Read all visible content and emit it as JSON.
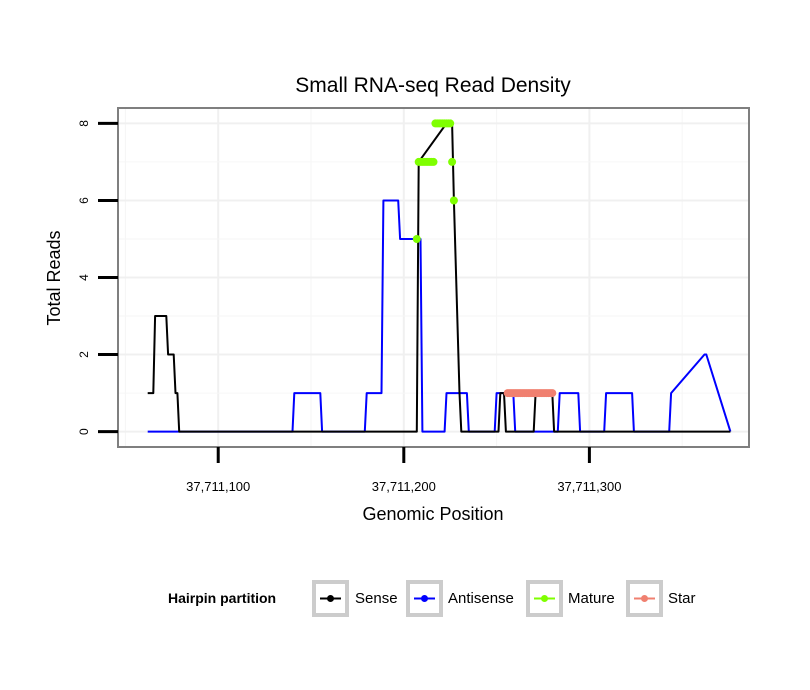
{
  "chart_data": {
    "type": "line",
    "title": "Small RNA-seq Read Density",
    "xlabel": "Genomic Position",
    "ylabel": "Total Reads",
    "xlim": [
      37711046,
      37711386
    ],
    "ylim": [
      -0.4,
      8.4
    ],
    "x_ticks": [
      37711100,
      37711200,
      37711300
    ],
    "x_tick_labels": [
      "37,711,100",
      "37,711,200",
      "37,711,300"
    ],
    "y_ticks": [
      0,
      2,
      4,
      6,
      8
    ],
    "y_tick_labels": [
      "0",
      "2",
      "4",
      "6",
      "8"
    ],
    "grid": true,
    "legend_title": "Hairpin partition",
    "legend_position": "bottom",
    "series": [
      {
        "name": "Sense",
        "color": "#000000",
        "kind": "line",
        "x": [
          37711062,
          37711065,
          37711066,
          37711072,
          37711073,
          37711076,
          37711077,
          37711078,
          37711079,
          37711169,
          37711207,
          37711208,
          37711223,
          37711226,
          37711227,
          37711230,
          37711231,
          37711251,
          37711252,
          37711254,
          37711255,
          37711270,
          37711271,
          37711280,
          37711281,
          37711376
        ],
        "y": [
          1,
          1,
          3,
          3,
          2,
          2,
          1,
          1,
          0,
          0,
          0,
          7,
          8,
          8,
          6,
          1,
          0,
          0,
          1,
          1,
          0,
          0,
          1,
          1,
          0,
          0
        ]
      },
      {
        "name": "Antisense",
        "color": "#0000ff",
        "kind": "line",
        "x": [
          37711062,
          37711070,
          37711071,
          37711140,
          37711141,
          37711155,
          37711156,
          37711179,
          37711180,
          37711188,
          37711189,
          37711197,
          37711198,
          37711209,
          37711210,
          37711222,
          37711223,
          37711234,
          37711235,
          37711249,
          37711250,
          37711259,
          37711260,
          37711283,
          37711284,
          37711294,
          37711295,
          37711308,
          37711309,
          37711323,
          37711324,
          37711343,
          37711344,
          37711362,
          37711363,
          37711376
        ],
        "y": [
          0,
          0,
          0,
          0,
          1,
          1,
          0,
          0,
          1,
          1,
          6,
          6,
          5,
          5,
          0,
          0,
          1,
          1,
          0,
          0,
          1,
          1,
          0,
          0,
          1,
          1,
          0,
          0,
          1,
          1,
          0,
          0,
          1,
          2,
          2,
          0
        ]
      },
      {
        "name": "Mature",
        "color": "#7fff00",
        "kind": "points",
        "x": [
          37711207,
          37711208,
          37711209,
          37711210,
          37711211,
          37711212,
          37711213,
          37711214,
          37711215,
          37711216,
          37711217,
          37711218,
          37711219,
          37711220,
          37711221,
          37711222,
          37711223,
          37711224,
          37711225,
          37711226,
          37711227
        ],
        "y": [
          5,
          7,
          7,
          7,
          7,
          7,
          7,
          7,
          7,
          7,
          8,
          8,
          8,
          8,
          8,
          8,
          8,
          8,
          8,
          7,
          6
        ]
      },
      {
        "name": "Star",
        "color": "#f08070",
        "kind": "points",
        "x": [
          37711256,
          37711257,
          37711258,
          37711259,
          37711260,
          37711261,
          37711262,
          37711263,
          37711264,
          37711265,
          37711266,
          37711267,
          37711268,
          37711269,
          37711270,
          37711271,
          37711272,
          37711273,
          37711274,
          37711275,
          37711276,
          37711277,
          37711278,
          37711279,
          37711280
        ],
        "y": [
          1,
          1,
          1,
          1,
          1,
          1,
          1,
          1,
          1,
          1,
          1,
          1,
          1,
          1,
          1,
          1,
          1,
          1,
          1,
          1,
          1,
          1,
          1,
          1,
          1
        ]
      }
    ]
  }
}
